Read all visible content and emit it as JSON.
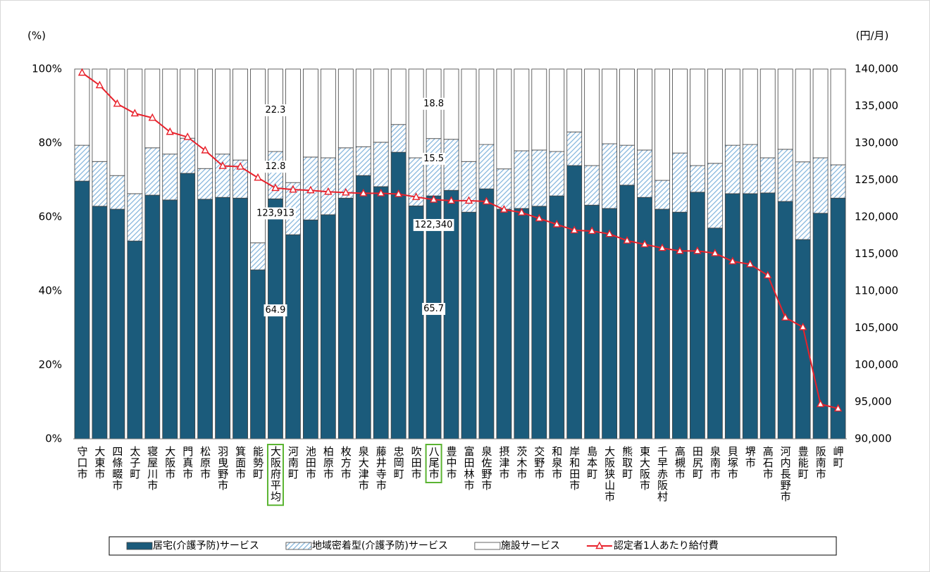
{
  "chart_data": {
    "type": "stacked_bar_line",
    "y_label": "(%)",
    "y2_label": "(円/月)",
    "categories": [
      "守口市",
      "大東市",
      "四條畷市",
      "太子町",
      "寝屋川市",
      "大阪市",
      "門真市",
      "松原市",
      "羽曳野市",
      "箕面市",
      "能勢町",
      "大阪府平均",
      "河南町",
      "池田市",
      "柏原市",
      "枚方市",
      "泉大津市",
      "藤井寺市",
      "忠岡町",
      "吹田市",
      "八尾市",
      "豊中市",
      "富田林市",
      "泉佐野市",
      "摂津市",
      "茨木市",
      "交野市",
      "和泉市",
      "岸和田市",
      "島本町",
      "大阪狭山市",
      "熊取町",
      "東大阪市",
      "千早赤阪村",
      "高槻市",
      "田尻町",
      "泉南市",
      "貝塚市",
      "堺市",
      "高石市",
      "河内長野市",
      "豊能町",
      "阪南市",
      "岬町"
    ],
    "series": [
      {
        "name": "居宅(介護予防)サービス",
        "color": "#1b5b7b",
        "type": "bar",
        "values": [
          69.7,
          62.9,
          62.1,
          53.5,
          65.9,
          64.6,
          71.8,
          64.8,
          65.3,
          65.1,
          45.7,
          64.9,
          55.2,
          59.2,
          60.6,
          65.1,
          71.2,
          68.2,
          77.5,
          63.0,
          65.7,
          67.2,
          61.3,
          67.6,
          62.1,
          62.3,
          62.9,
          65.7,
          73.9,
          63.2,
          62.3,
          68.6,
          65.3,
          62.1,
          61.3,
          66.7,
          57.0,
          66.3,
          66.3,
          66.5,
          64.2,
          53.9,
          61.0,
          65.1
        ],
        "value_labels": [
          null,
          null,
          null,
          null,
          null,
          null,
          null,
          null,
          null,
          null,
          null,
          "64.9",
          null,
          null,
          null,
          null,
          null,
          null,
          null,
          null,
          "65.7",
          null,
          null,
          null,
          null,
          null,
          null,
          null,
          null,
          null,
          null,
          null,
          null,
          null,
          null,
          null,
          null,
          null,
          null,
          null,
          null,
          null,
          null,
          null
        ]
      },
      {
        "name": "地域密着型(介護予防)サービス",
        "color": "#8fbde0",
        "type": "bar",
        "hatch": true,
        "values": [
          9.7,
          12.1,
          9.1,
          12.8,
          12.8,
          12.4,
          9.5,
          8.3,
          11.7,
          10.3,
          7.3,
          12.8,
          14.1,
          17.0,
          15.4,
          13.6,
          7.8,
          12.0,
          7.5,
          13.0,
          15.5,
          13.8,
          13.7,
          12.0,
          10.9,
          15.6,
          15.2,
          12.0,
          9.1,
          10.7,
          17.5,
          10.8,
          12.8,
          7.8,
          16.0,
          7.2,
          17.5,
          13.1,
          13.3,
          9.5,
          14.1,
          21.0,
          15.0,
          9.0
        ],
        "value_labels": [
          null,
          null,
          null,
          null,
          null,
          null,
          null,
          null,
          null,
          null,
          null,
          "12.8",
          null,
          null,
          null,
          null,
          null,
          null,
          null,
          null,
          "15.5",
          null,
          null,
          null,
          null,
          null,
          null,
          null,
          null,
          null,
          null,
          null,
          null,
          null,
          null,
          null,
          null,
          null,
          null,
          null,
          null,
          null,
          null,
          null
        ]
      },
      {
        "name": "施設サービス",
        "color": "#ffffff",
        "type": "bar",
        "values": [
          20.6,
          25.0,
          28.8,
          33.7,
          21.3,
          23.0,
          18.7,
          26.9,
          23.0,
          24.6,
          47.0,
          22.3,
          30.7,
          23.8,
          24.0,
          21.3,
          21.0,
          19.8,
          15.0,
          24.0,
          18.8,
          19.0,
          25.0,
          20.4,
          27.0,
          22.1,
          21.9,
          22.3,
          17.0,
          26.1,
          20.2,
          20.6,
          21.9,
          30.1,
          22.7,
          26.1,
          25.5,
          20.6,
          20.4,
          24.0,
          21.7,
          25.1,
          24.0,
          25.9
        ],
        "value_labels": [
          null,
          null,
          null,
          null,
          null,
          null,
          null,
          null,
          null,
          null,
          null,
          "22.3",
          null,
          null,
          null,
          null,
          null,
          null,
          null,
          null,
          "18.8",
          null,
          null,
          null,
          null,
          null,
          null,
          null,
          null,
          null,
          null,
          null,
          null,
          null,
          null,
          null,
          null,
          null,
          null,
          null,
          null,
          null,
          null,
          null
        ]
      },
      {
        "name": "認定者1人あたり給付費",
        "color": "#e8212b",
        "type": "line",
        "axis": "y2",
        "marker": "triangle",
        "values": [
          139500,
          137800,
          135300,
          134000,
          133400,
          131500,
          130800,
          129000,
          126900,
          126800,
          125300,
          123913,
          123700,
          123600,
          123400,
          123300,
          123200,
          123200,
          123100,
          122700,
          122340,
          122200,
          122200,
          122100,
          121000,
          120600,
          119800,
          119000,
          118200,
          118100,
          117700,
          116800,
          116300,
          115800,
          115400,
          115400,
          115100,
          114000,
          113600,
          112100,
          106400,
          105100,
          94700,
          94100
        ],
        "value_labels": [
          null,
          null,
          null,
          null,
          null,
          null,
          null,
          null,
          null,
          null,
          null,
          "123,913",
          null,
          null,
          null,
          null,
          null,
          null,
          null,
          null,
          "122,340",
          null,
          null,
          null,
          null,
          null,
          null,
          null,
          null,
          null,
          null,
          null,
          null,
          null,
          null,
          null,
          null,
          null,
          null,
          null,
          null,
          null,
          null,
          null
        ]
      }
    ],
    "highlight_color": "#5bb432",
    "ylim": [
      0,
      100
    ],
    "yticks": [
      {
        "value": 0,
        "label": "0%"
      },
      {
        "value": 20,
        "label": "20%"
      },
      {
        "value": 40,
        "label": "40%"
      },
      {
        "value": 60,
        "label": "60%"
      },
      {
        "value": 80,
        "label": "80%"
      },
      {
        "value": 100,
        "label": "100%"
      }
    ],
    "y2lim": [
      90000,
      140000
    ],
    "y2ticks": [
      {
        "value": 90000,
        "label": "90,000"
      },
      {
        "value": 95000,
        "label": "95,000"
      },
      {
        "value": 100000,
        "label": "100,000"
      },
      {
        "value": 105000,
        "label": "105,000"
      },
      {
        "value": 110000,
        "label": "110,000"
      },
      {
        "value": 115000,
        "label": "115,000"
      },
      {
        "value": 120000,
        "label": "120,000"
      },
      {
        "value": 125000,
        "label": "125,000"
      },
      {
        "value": 130000,
        "label": "130,000"
      },
      {
        "value": 135000,
        "label": "135,000"
      },
      {
        "value": 140000,
        "label": "140,000"
      }
    ],
    "grid": false,
    "legend": "bottom"
  }
}
